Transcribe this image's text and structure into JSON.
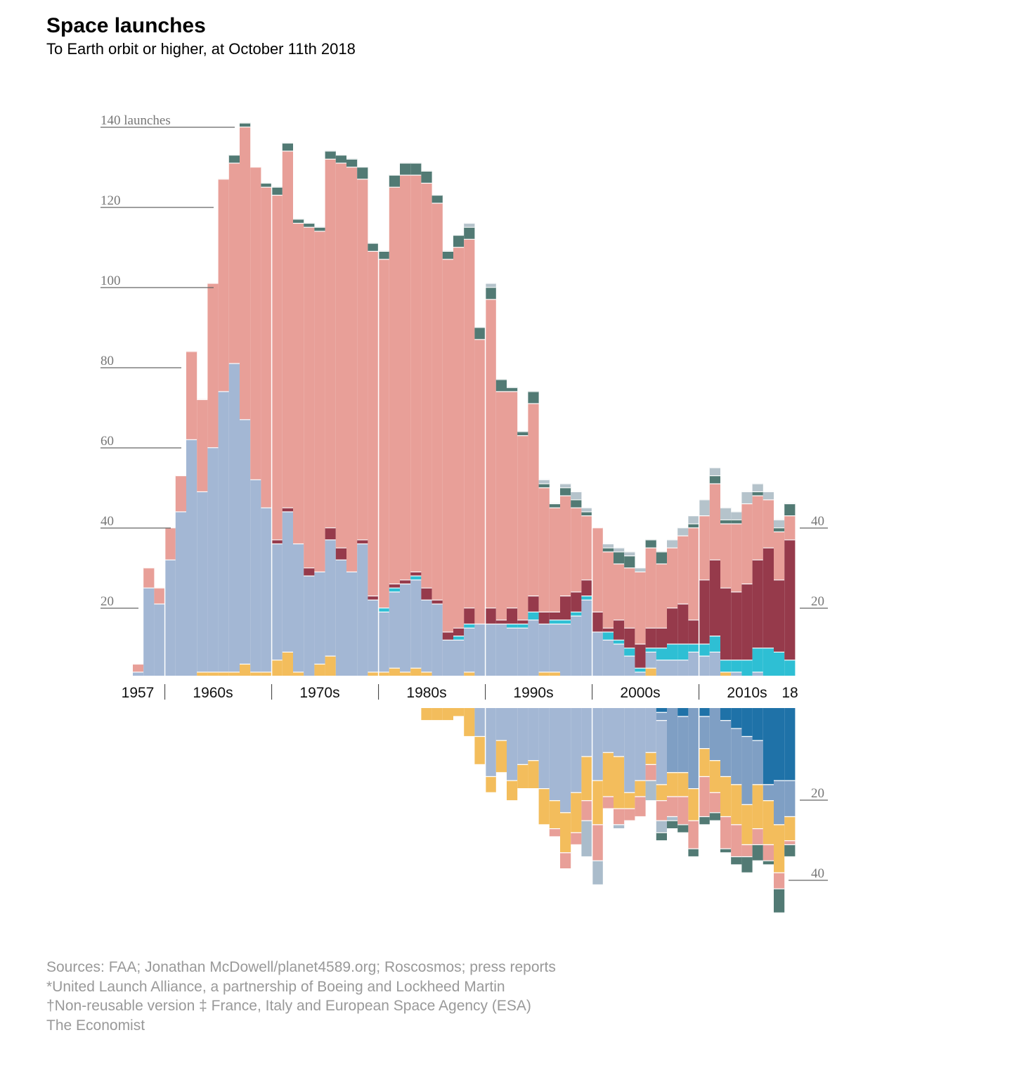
{
  "title": "Space launches",
  "subtitle": "To Earth orbit or higher, at October 11th 2018",
  "footer": [
    "Sources: FAA; Jonathan McDowell/planet4589.org; Roscosmos; press reports",
    "*United Launch Alliance, a partnership of Boeing and Lockheed Martin",
    "†Non-reusable version ‡ France, Italy and European Space Agency (ESA)",
    "The Economist"
  ],
  "chart_data": [
    {
      "type": "bar",
      "stacked": true,
      "direction": "up",
      "x_start": 1957,
      "x_end": 2018,
      "ylim": [
        0,
        140
      ],
      "y_ticks_left": [
        "140 launches",
        "120",
        "100",
        "80",
        "60",
        "40",
        "20"
      ],
      "y_tick_values_left": [
        140,
        120,
        100,
        80,
        60,
        40,
        20
      ],
      "y_ticks_right": [
        "40",
        "20"
      ],
      "y_tick_values_right": [
        40,
        20
      ],
      "x_tick_labels": [
        "1957",
        "1960s",
        "1970s",
        "1980s",
        "1990s",
        "2000s",
        "2010s",
        "18"
      ],
      "series_colors": [
        "#f3bd5c",
        "#a3b7d4",
        "#2ebfd4",
        "#963a4b",
        "#e89f98",
        "#527a74",
        "#b5c3cb"
      ],
      "values_by_year": [
        [
          0,
          1,
          0,
          0,
          2,
          0,
          0
        ],
        [
          0,
          22,
          0,
          0,
          5,
          0,
          0
        ],
        [
          0,
          18,
          0,
          0,
          4,
          0,
          0
        ],
        [
          0,
          29,
          0,
          0,
          8,
          0,
          0
        ],
        [
          0,
          41,
          0,
          0,
          9,
          0,
          0
        ],
        [
          0,
          59,
          0,
          0,
          22,
          0,
          0
        ],
        [
          1,
          45,
          0,
          0,
          23,
          0,
          0
        ],
        [
          1,
          56,
          0,
          0,
          41,
          0,
          0
        ],
        [
          1,
          70,
          0,
          0,
          53,
          0,
          0
        ],
        [
          1,
          77,
          0,
          0,
          50,
          2,
          0
        ],
        [
          3,
          61,
          0,
          0,
          73,
          1,
          0
        ],
        [
          1,
          48,
          0,
          0,
          78,
          0,
          0
        ],
        [
          1,
          41,
          0,
          0,
          80,
          1,
          0
        ],
        [
          4,
          29,
          0,
          1,
          86,
          2,
          0
        ],
        [
          6,
          35,
          0,
          1,
          89,
          2,
          0
        ],
        [
          1,
          32,
          0,
          0,
          80,
          1,
          0
        ],
        [
          0,
          25,
          0,
          2,
          85,
          1,
          0
        ],
        [
          3,
          23,
          0,
          0,
          85,
          1,
          0
        ],
        [
          5,
          29,
          0,
          3,
          92,
          2,
          0
        ],
        [
          0,
          29,
          0,
          3,
          96,
          2,
          0
        ],
        [
          0,
          26,
          0,
          0,
          101,
          2,
          0
        ],
        [
          0,
          33,
          0,
          1,
          90,
          3,
          0
        ],
        [
          1,
          18,
          0,
          1,
          86,
          2,
          0
        ],
        [
          1,
          15,
          1,
          0,
          87,
          2,
          0
        ],
        [
          2,
          19,
          1,
          1,
          99,
          3,
          0
        ],
        [
          1,
          22,
          0,
          1,
          101,
          3,
          0
        ],
        [
          2,
          22,
          1,
          1,
          99,
          3,
          0
        ],
        [
          1,
          18,
          0,
          3,
          101,
          3,
          0
        ],
        [
          0,
          18,
          0,
          1,
          99,
          2,
          0
        ],
        [
          0,
          9,
          0,
          2,
          93,
          2,
          0
        ],
        [
          0,
          9,
          1,
          2,
          95,
          3,
          0
        ],
        [
          1,
          11,
          1,
          4,
          92,
          3,
          1
        ],
        [
          0,
          13,
          0,
          0,
          71,
          3,
          0
        ],
        [
          0,
          13,
          0,
          4,
          77,
          3,
          1
        ],
        [
          0,
          13,
          0,
          1,
          57,
          3,
          0
        ],
        [
          0,
          12,
          1,
          4,
          54,
          1,
          0
        ],
        [
          0,
          12,
          1,
          1,
          46,
          1,
          0
        ],
        [
          0,
          14,
          2,
          4,
          48,
          3,
          0
        ],
        [
          1,
          12,
          0,
          3,
          31,
          1,
          1
        ],
        [
          1,
          12,
          1,
          2,
          26,
          1,
          0
        ],
        [
          0,
          13,
          1,
          6,
          25,
          2,
          1
        ],
        [
          0,
          15,
          1,
          5,
          21,
          2,
          2
        ],
        [
          0,
          19,
          1,
          4,
          16,
          1,
          1
        ],
        [
          0,
          11,
          0,
          5,
          21,
          0,
          0
        ],
        [
          0,
          9,
          2,
          1,
          19,
          1,
          1
        ],
        [
          0,
          8,
          1,
          5,
          14,
          3,
          1
        ],
        [
          0,
          5,
          2,
          5,
          15,
          3,
          1
        ],
        [
          0,
          1,
          1,
          6,
          18,
          0,
          1
        ],
        [
          2,
          4,
          1,
          5,
          20,
          2,
          0
        ],
        [
          0,
          4,
          3,
          5,
          16,
          3,
          0
        ],
        [
          0,
          4,
          4,
          9,
          15,
          0,
          2
        ],
        [
          0,
          4,
          4,
          10,
          17,
          0,
          2
        ],
        [
          0,
          6,
          2,
          6,
          23,
          1,
          2
        ],
        [
          0,
          5,
          3,
          16,
          16,
          0,
          4
        ],
        [
          0,
          6,
          4,
          19,
          19,
          2,
          2
        ],
        [
          1,
          0,
          3,
          18,
          16,
          1,
          3
        ],
        [
          0,
          1,
          3,
          17,
          17,
          1,
          2
        ],
        [
          0,
          0,
          4,
          19,
          20,
          0,
          3
        ],
        [
          0,
          1,
          6,
          22,
          16,
          1,
          2
        ],
        [
          0,
          0,
          7,
          25,
          12,
          0,
          2
        ],
        [
          0,
          0,
          6,
          18,
          12,
          1,
          2
        ],
        [
          0,
          0,
          4,
          30,
          6,
          3,
          0
        ]
      ]
    },
    {
      "type": "bar",
      "stacked": true,
      "direction": "down",
      "x_start": 1984,
      "x_end": 2018,
      "ylim": [
        0,
        40
      ],
      "y_ticks_right": [
        "20",
        "40"
      ],
      "y_tick_values_right": [
        20,
        40
      ],
      "series_colors": [
        "#1f72a8",
        "#7f9fc4",
        "#a3b7d4",
        "#f3bd5c",
        "#e89f98",
        "#aabccb",
        "#527a74"
      ],
      "values_by_year": [
        [
          0,
          0,
          0,
          3,
          0,
          0,
          0
        ],
        [
          0,
          0,
          0,
          3,
          0,
          0,
          0
        ],
        [
          0,
          0,
          0,
          3,
          0,
          0,
          0
        ],
        [
          0,
          0,
          0,
          2,
          0,
          0,
          0
        ],
        [
          0,
          0,
          0,
          7,
          0,
          0,
          0
        ],
        [
          0,
          0,
          7,
          7,
          0,
          0,
          0
        ],
        [
          0,
          0,
          17,
          4,
          0,
          0,
          0
        ],
        [
          0,
          0,
          8,
          8,
          0,
          0,
          0
        ],
        [
          0,
          0,
          18,
          5,
          0,
          0,
          0
        ],
        [
          0,
          0,
          14,
          6,
          0,
          0,
          0
        ],
        [
          0,
          0,
          13,
          7,
          0,
          0,
          0
        ],
        [
          0,
          0,
          20,
          9,
          0,
          0,
          0
        ],
        [
          0,
          0,
          23,
          7,
          2,
          0,
          0
        ],
        [
          0,
          0,
          26,
          10,
          4,
          0,
          0
        ],
        [
          0,
          0,
          21,
          10,
          3,
          0,
          0
        ],
        [
          0,
          0,
          12,
          11,
          5,
          9,
          0
        ],
        [
          0,
          0,
          18,
          11,
          9,
          6,
          0
        ],
        [
          0,
          0,
          11,
          11,
          3,
          0,
          0
        ],
        [
          0,
          0,
          12,
          13,
          4,
          1,
          0
        ],
        [
          0,
          0,
          21,
          4,
          3,
          0,
          0
        ],
        [
          0,
          0,
          18,
          4,
          5,
          0,
          0
        ],
        [
          0,
          0,
          11,
          3,
          4,
          5,
          0
        ],
        [
          1,
          2,
          16,
          4,
          5,
          3,
          2
        ],
        [
          0,
          16,
          0,
          6,
          5,
          1,
          2
        ],
        [
          2,
          14,
          0,
          6,
          7,
          0,
          2
        ],
        [
          0,
          20,
          0,
          8,
          7,
          0,
          2
        ],
        [
          2,
          8,
          0,
          7,
          10,
          0,
          2
        ],
        [
          0,
          13,
          0,
          8,
          5,
          0,
          2
        ],
        [
          3,
          14,
          0,
          10,
          8,
          0,
          1
        ],
        [
          5,
          14,
          0,
          10,
          8,
          0,
          2
        ],
        [
          7,
          17,
          0,
          10,
          3,
          0,
          4
        ],
        [
          8,
          11,
          0,
          11,
          4,
          0,
          4
        ],
        [
          19,
          4,
          0,
          11,
          4,
          0,
          1
        ],
        [
          18,
          11,
          0,
          12,
          4,
          0,
          6
        ],
        [
          18,
          9,
          0,
          6,
          1,
          0,
          3
        ]
      ]
    }
  ]
}
